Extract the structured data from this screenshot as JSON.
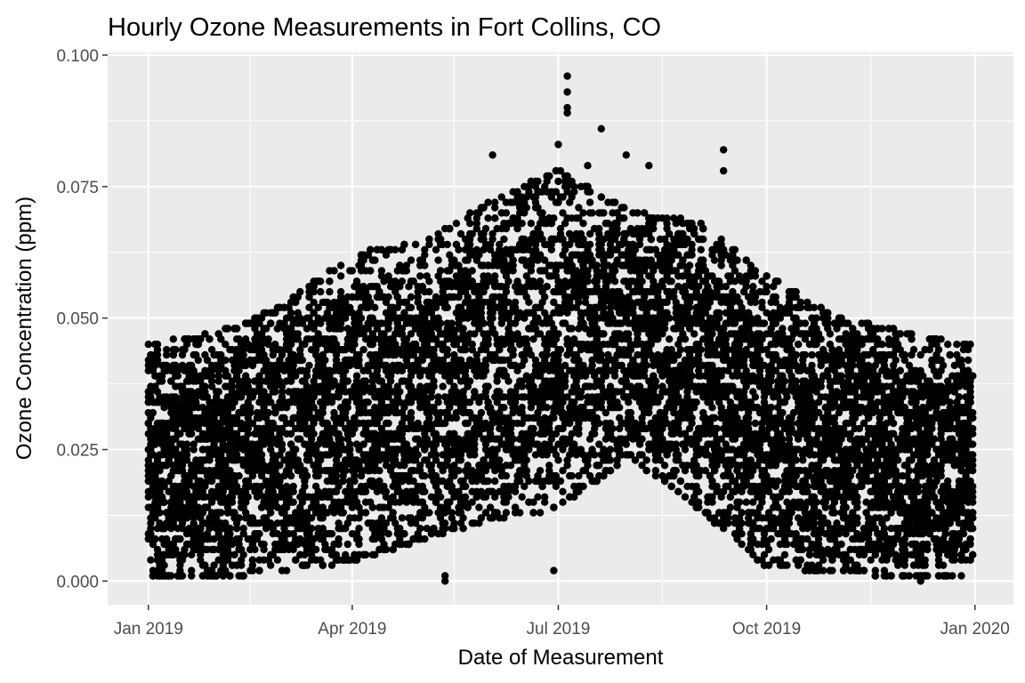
{
  "chart_data": {
    "type": "scatter",
    "title": "Hourly Ozone Measurements in Fort Collins, CO",
    "xlabel": "Date of Measurement",
    "ylabel": "Ozone Concentration (ppm)",
    "xlim": [
      "2018-12-14",
      "2020-01-18"
    ],
    "ylim": [
      -0.0045,
      0.1005
    ],
    "x_ticks": [
      {
        "date": "2019-01-01",
        "label": "Jan 2019"
      },
      {
        "date": "2019-04-01",
        "label": "Apr 2019"
      },
      {
        "date": "2019-07-01",
        "label": "Jul 2019"
      },
      {
        "date": "2019-10-01",
        "label": "Oct 2019"
      },
      {
        "date": "2020-01-01",
        "label": "Jan 2020"
      }
    ],
    "y_ticks": [
      {
        "value": 0.0,
        "label": "0.000"
      },
      {
        "value": 0.025,
        "label": "0.025"
      },
      {
        "value": 0.05,
        "label": "0.050"
      },
      {
        "value": 0.075,
        "label": "0.075"
      },
      {
        "value": 0.1,
        "label": "0.100"
      }
    ],
    "x_minor": [
      "2019-02-15",
      "2019-05-16",
      "2019-08-16",
      "2019-11-16"
    ],
    "y_minor": [
      0.0125,
      0.0375,
      0.0625,
      0.0875
    ],
    "grid": true,
    "panel_color": "#ebebeb",
    "grid_color": "#ffffff",
    "point_color": "#000000",
    "data_summary": {
      "points_per_day": 24,
      "series": [
        {
          "date": "2019-01-01",
          "low": 0.001,
          "high": 0.045
        },
        {
          "date": "2019-02-01",
          "low": 0.001,
          "high": 0.047
        },
        {
          "date": "2019-03-01",
          "low": 0.002,
          "high": 0.052
        },
        {
          "date": "2019-04-01",
          "low": 0.004,
          "high": 0.062
        },
        {
          "date": "2019-05-01",
          "low": 0.008,
          "high": 0.064
        },
        {
          "date": "2019-06-01",
          "low": 0.012,
          "high": 0.072
        },
        {
          "date": "2019-07-01",
          "low": 0.014,
          "high": 0.078
        },
        {
          "date": "2019-08-01",
          "low": 0.024,
          "high": 0.07
        },
        {
          "date": "2019-09-01",
          "low": 0.014,
          "high": 0.068
        },
        {
          "date": "2019-10-01",
          "low": 0.003,
          "high": 0.058
        },
        {
          "date": "2019-11-01",
          "low": 0.002,
          "high": 0.05
        },
        {
          "date": "2019-12-01",
          "low": 0.001,
          "high": 0.047
        },
        {
          "date": "2019-12-31",
          "low": 0.001,
          "high": 0.045
        }
      ],
      "notable_points": [
        {
          "date": "2019-07-05",
          "value": 0.096
        },
        {
          "date": "2019-07-05",
          "value": 0.093
        },
        {
          "date": "2019-07-05",
          "value": 0.09
        },
        {
          "date": "2019-07-05",
          "value": 0.089
        },
        {
          "date": "2019-07-20",
          "value": 0.086
        },
        {
          "date": "2019-07-01",
          "value": 0.083
        },
        {
          "date": "2019-09-12",
          "value": 0.082
        },
        {
          "date": "2019-06-02",
          "value": 0.081
        },
        {
          "date": "2019-07-31",
          "value": 0.081
        },
        {
          "date": "2019-07-14",
          "value": 0.079
        },
        {
          "date": "2019-08-10",
          "value": 0.079
        },
        {
          "date": "2019-09-12",
          "value": 0.078
        },
        {
          "date": "2019-05-12",
          "value": 0.001
        },
        {
          "date": "2019-05-12",
          "value": 0.0
        },
        {
          "date": "2019-06-29",
          "value": 0.002
        },
        {
          "date": "2019-12-08",
          "value": 0.0
        }
      ]
    }
  }
}
